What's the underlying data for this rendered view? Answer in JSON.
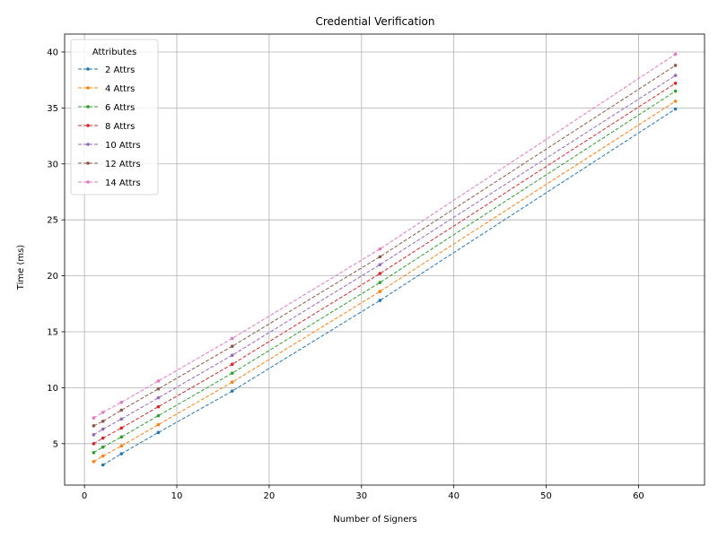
{
  "chart_data": {
    "type": "line",
    "title": "Credential Verification",
    "xlabel": "Number of Signers",
    "ylabel": "Time (ms)",
    "xlim": [
      -2.15,
      67.15
    ],
    "ylim": [
      1.3,
      41.6
    ],
    "xticks": [
      0,
      10,
      20,
      30,
      40,
      50,
      60
    ],
    "yticks": [
      5,
      10,
      15,
      20,
      25,
      30,
      35,
      40
    ],
    "grid": true,
    "legend": {
      "title": "Attributes",
      "placement": "top-left"
    },
    "line_style": "dashed",
    "series": [
      {
        "name": "2 Attrs",
        "color": "#1f77b4",
        "x": [
          2,
          4,
          8,
          16,
          32,
          64
        ],
        "y": [
          3.1,
          4.1,
          6.0,
          9.7,
          17.8,
          34.9
        ]
      },
      {
        "name": "4 Attrs",
        "color": "#ff7f0e",
        "x": [
          1,
          2,
          4,
          8,
          16,
          32,
          64
        ],
        "y": [
          3.4,
          3.9,
          4.8,
          6.7,
          10.5,
          18.6,
          35.6
        ]
      },
      {
        "name": "6 Attrs",
        "color": "#2ca02c",
        "x": [
          1,
          2,
          4,
          8,
          16,
          32,
          64
        ],
        "y": [
          4.2,
          4.7,
          5.6,
          7.5,
          11.3,
          19.4,
          36.5
        ]
      },
      {
        "name": "8 Attrs",
        "color": "#d62728",
        "x": [
          1,
          2,
          4,
          8,
          16,
          32,
          64
        ],
        "y": [
          5.0,
          5.5,
          6.4,
          8.3,
          12.1,
          20.2,
          37.2
        ]
      },
      {
        "name": "10 Attrs",
        "color": "#9467bd",
        "x": [
          1,
          2,
          4,
          8,
          16,
          32,
          64
        ],
        "y": [
          5.8,
          6.3,
          7.2,
          9.1,
          12.9,
          21.0,
          37.9
        ]
      },
      {
        "name": "12 Attrs",
        "color": "#8c564b",
        "x": [
          1,
          2,
          4,
          8,
          16,
          32,
          64
        ],
        "y": [
          6.6,
          7.0,
          8.0,
          9.9,
          13.7,
          21.7,
          38.8
        ]
      },
      {
        "name": "14 Attrs",
        "color": "#e377c2",
        "x": [
          1,
          2,
          4,
          8,
          16,
          32,
          64
        ],
        "y": [
          7.3,
          7.8,
          8.7,
          10.6,
          14.4,
          22.4,
          39.8
        ]
      }
    ]
  }
}
